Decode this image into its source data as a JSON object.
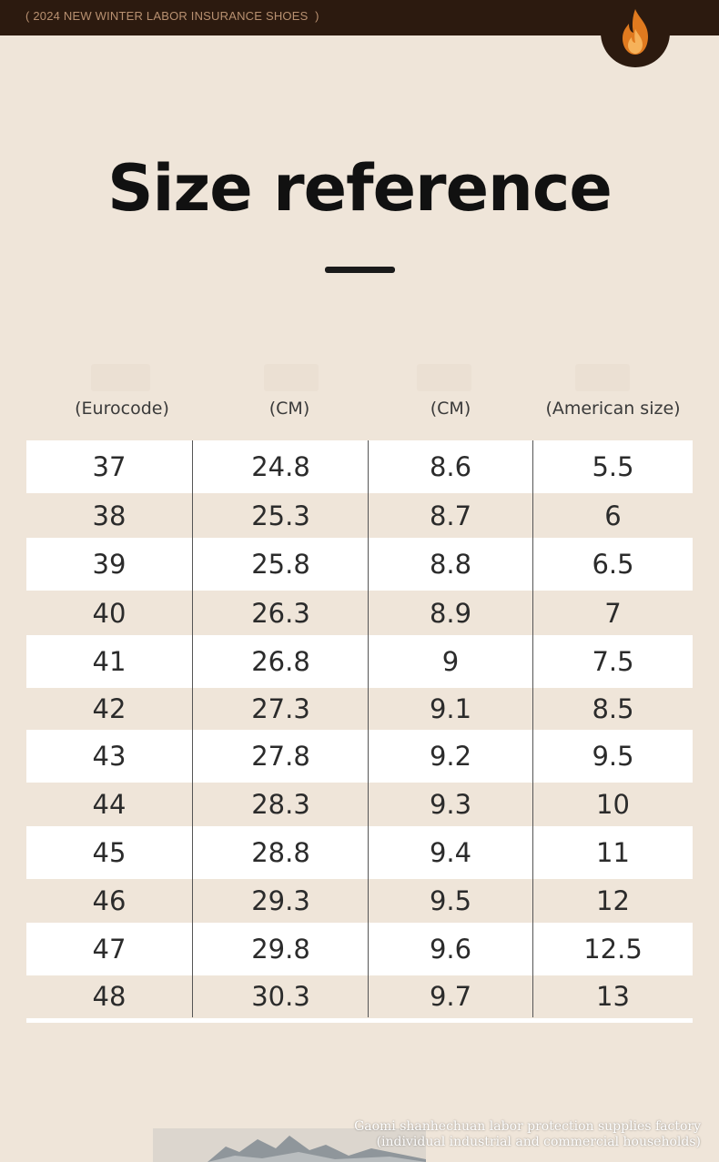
{
  "header": {
    "banner_text": "( 2024 NEW WINTER LABOR INSURANCE SHOES  )",
    "logo_icon": "flame-icon",
    "colors": {
      "bar": "#2c1a0f",
      "flame_outer": "#e07a1f",
      "flame_inner": "#f6b25a"
    }
  },
  "title": "Size reference",
  "columns": [
    "(Eurocode)",
    "(CM)",
    "(CM)",
    "(American size)"
  ],
  "rows": [
    [
      "37",
      "24.8",
      "8.6",
      "5.5"
    ],
    [
      "38",
      "25.3",
      "8.7",
      "6"
    ],
    [
      "39",
      "25.8",
      "8.8",
      "6.5"
    ],
    [
      "40",
      "26.3",
      "8.9",
      "7"
    ],
    [
      "41",
      "26.8",
      "9",
      "7.5"
    ],
    [
      "42",
      "27.3",
      "9.1",
      "8.5"
    ],
    [
      "43",
      "27.8",
      "9.2",
      "9.5"
    ],
    [
      "44",
      "28.3",
      "9.3",
      "10"
    ],
    [
      "45",
      "28.8",
      "9.4",
      "11"
    ],
    [
      "46",
      "29.3",
      "9.5",
      "12"
    ],
    [
      "47",
      "29.8",
      "9.6",
      "12.5"
    ],
    [
      "48",
      "30.3",
      "9.7",
      "13"
    ]
  ],
  "footer": {
    "line1": "Gaomi shanhechuan labor protection supplies factory",
    "line2": "(individual industrial and commercial households)"
  },
  "colors": {
    "background": "#efe5d9",
    "stripe": "#ffffff"
  }
}
